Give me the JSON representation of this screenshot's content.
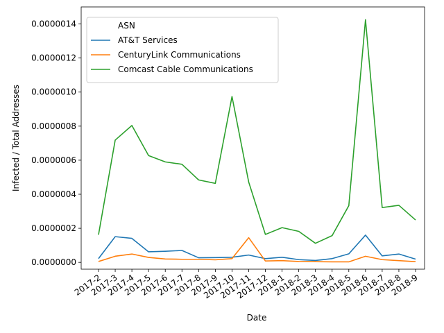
{
  "chart_data": {
    "type": "line",
    "xlabel": "Date",
    "ylabel": "Infected / Total Addresses",
    "ylim": [
      -4e-08,
      1.5e-06
    ],
    "yticks": [
      0,
      2e-07,
      4e-07,
      6e-07,
      8e-07,
      1e-06,
      1.2e-06,
      1.4e-06
    ],
    "ytick_labels": [
      "0.0000000",
      "0.0000002",
      "0.0000004",
      "0.0000006",
      "0.0000008",
      "0.0000010",
      "0.0000012",
      "0.0000014"
    ],
    "categories": [
      "2017-2",
      "2017-3",
      "2017-4",
      "2017-5",
      "2017-6",
      "2017-7",
      "2017-8",
      "2017-9",
      "2017-10",
      "2017-11",
      "2017-12",
      "2018-1",
      "2018-2",
      "2018-3",
      "2018-4",
      "2018-5",
      "2018-6",
      "2018-7",
      "2018-8",
      "2018-9"
    ],
    "legend": {
      "title": "ASN",
      "position": "upper-left"
    },
    "series": [
      {
        "name": "AT&T Services",
        "color": "#1f77b4",
        "values": [
          2.2e-08,
          1.51e-07,
          1.41e-07,
          6.2e-08,
          6.5e-08,
          7e-08,
          2.7e-08,
          2.8e-08,
          3e-08,
          4.3e-08,
          2.2e-08,
          3e-08,
          1.6e-08,
          1.1e-08,
          2.2e-08,
          5e-08,
          1.6e-07,
          3.8e-08,
          4.9e-08,
          1.9e-08
        ]
      },
      {
        "name": "CenturyLink Communications",
        "color": "#ff7f0e",
        "values": [
          5e-09,
          3.6e-08,
          4.9e-08,
          2.9e-08,
          2e-08,
          1.8e-08,
          1.8e-08,
          1.5e-08,
          2.2e-08,
          1.45e-07,
          8e-09,
          1e-08,
          5e-09,
          4e-09,
          3e-09,
          3e-09,
          3.6e-08,
          1.6e-08,
          1e-08,
          4e-09
        ]
      },
      {
        "name": "Comcast Cable Communications",
        "color": "#2ca02c",
        "values": [
          1.62e-07,
          7.18e-07,
          8.04e-07,
          6.27e-07,
          5.9e-07,
          5.76e-07,
          4.84e-07,
          4.64e-07,
          9.74e-07,
          4.72e-07,
          1.64e-07,
          2.04e-07,
          1.82e-07,
          1.12e-07,
          1.57e-07,
          3.33e-07,
          1.425e-06,
          3.22e-07,
          3.35e-07,
          2.49e-07
        ]
      }
    ]
  }
}
